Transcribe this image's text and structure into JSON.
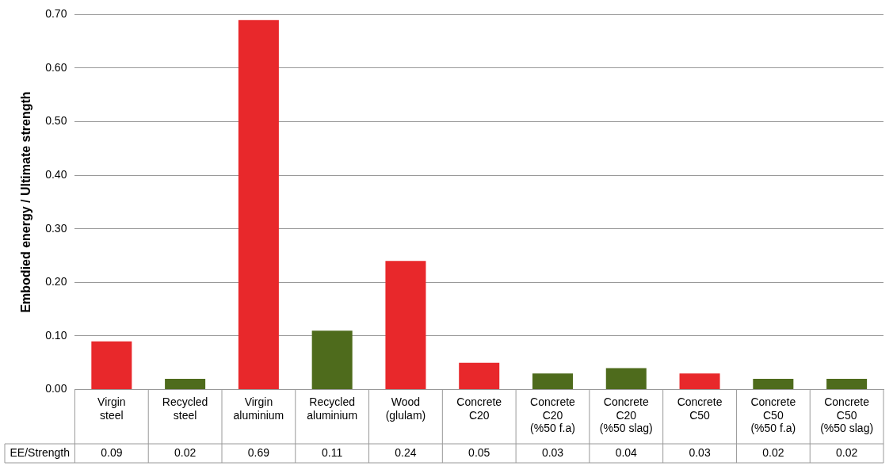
{
  "chart_data": {
    "type": "bar",
    "ylabel": "Embodied energy / Ultimate strength",
    "categories": [
      "Virgin\nsteel",
      "Recycled\nsteel",
      "Virgin\naluminium",
      "Recycled\naluminium",
      "Wood\n(glulam)",
      "Concrete\nC20",
      "Concrete\nC20\n(%50 f.a)",
      "Concrete\nC20\n(%50 slag)",
      "Concrete\nC50",
      "Concrete\nC50\n(%50 f.a)",
      "Concrete\nC50\n(%50 slag)"
    ],
    "series": [
      {
        "name": "EE/Strength",
        "colors": [
          "#e8282b",
          "#4e6b1c",
          "#e8282b",
          "#4e6b1c",
          "#e8282b",
          "#e8282b",
          "#4e6b1c",
          "#4e6b1c",
          "#e8282b",
          "#4e6b1c",
          "#4e6b1c"
        ],
        "values": [
          0.09,
          0.02,
          0.69,
          0.11,
          0.24,
          0.05,
          0.03,
          0.04,
          0.03,
          0.02,
          0.02
        ]
      }
    ],
    "ylim": [
      0,
      0.7
    ],
    "yticks": [
      {
        "value": 0,
        "label": "0.00"
      },
      {
        "value": 0.1,
        "label": "0.10"
      },
      {
        "value": 0.2,
        "label": "0.20"
      },
      {
        "value": 0.3,
        "label": "0.30"
      },
      {
        "value": 0.4,
        "label": "0.40"
      },
      {
        "value": 0.5,
        "label": "0.50"
      },
      {
        "value": 0.6,
        "label": "0.60"
      },
      {
        "value": 0.7,
        "label": "0.70"
      }
    ],
    "grid": "y",
    "legend": false,
    "data_labels": true
  }
}
